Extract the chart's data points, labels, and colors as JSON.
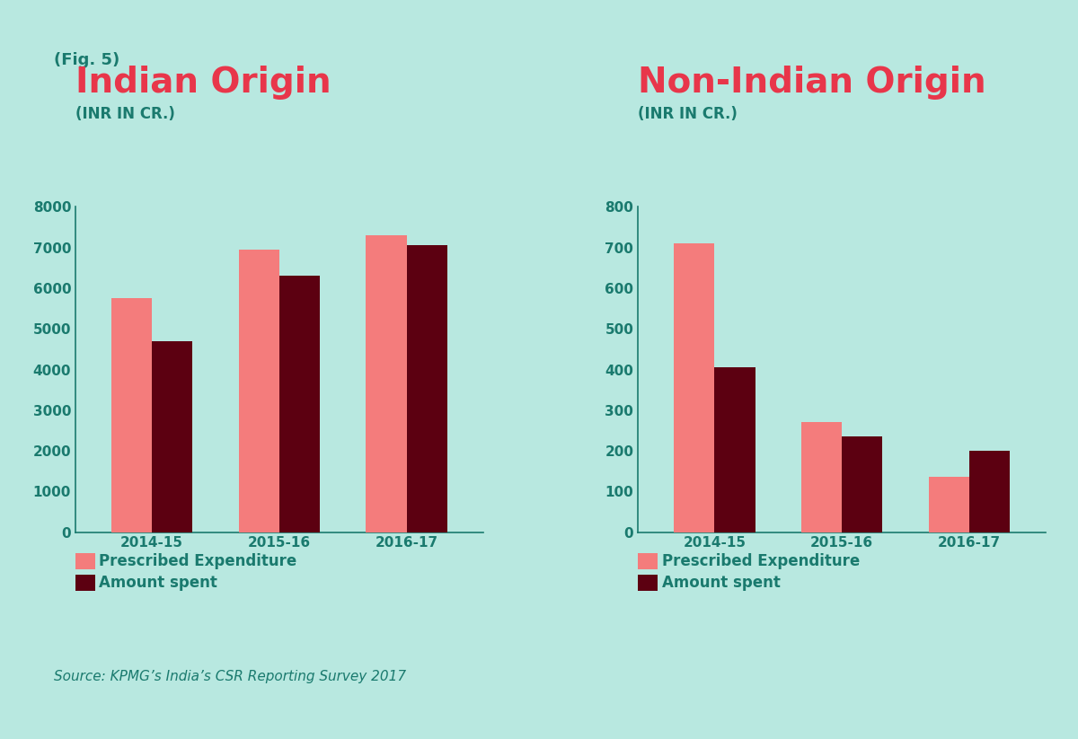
{
  "fig_label": "(Fig. 5)",
  "background_color": "#b8e8e0",
  "left_title": "Indian Origin",
  "right_title": "Non-Indian Origin",
  "subtitle": "(INR IN CR.)",
  "title_color": "#e8364a",
  "subtitle_color": "#1a7a6e",
  "fig_label_color": "#1a7a6e",
  "axis_color": "#1a7a6e",
  "tick_color": "#1a7a6e",
  "source_text": "Source: KPMG’s India’s CSR Reporting Survey 2017",
  "source_color": "#1a7a6e",
  "categories": [
    "2014-15",
    "2015-16",
    "2016-17"
  ],
  "indian_prescribed": [
    5750,
    6950,
    7300
  ],
  "indian_spent": [
    4700,
    6300,
    7050
  ],
  "non_indian_prescribed": [
    710,
    270,
    135
  ],
  "non_indian_spent": [
    405,
    235,
    200
  ],
  "indian_ylim": [
    0,
    8000
  ],
  "indian_yticks": [
    0,
    1000,
    2000,
    3000,
    4000,
    5000,
    6000,
    7000,
    8000
  ],
  "non_indian_ylim": [
    0,
    800
  ],
  "non_indian_yticks": [
    0,
    100,
    200,
    300,
    400,
    500,
    600,
    700,
    800
  ],
  "color_prescribed": "#f47c7c",
  "color_spent": "#5c0011",
  "legend_prescribed": "Prescribed Expenditure",
  "legend_spent": "Amount spent",
  "bar_width": 0.32,
  "outer_bg": "#ffffff"
}
